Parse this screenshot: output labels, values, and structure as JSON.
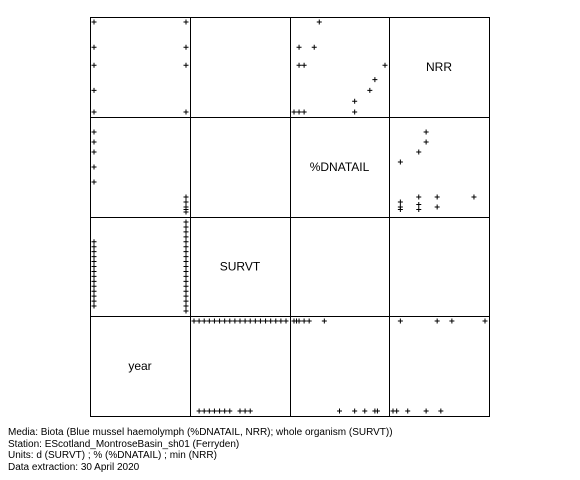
{
  "chart_data": {
    "type": "scatter",
    "layout": "scatterplot-matrix",
    "variables": [
      "NRR",
      "%DNATAIL",
      "SURVT",
      "year"
    ],
    "diagonal_labels": [
      "NRR",
      "%DNATAIL",
      "SURVT",
      "year"
    ],
    "grid": false,
    "panels": [
      {
        "row": 0,
        "col": 0,
        "x_var": "year",
        "y_var": "NRR",
        "points": [
          [
            0.0,
            95
          ],
          [
            0.7,
            95
          ],
          [
            0.0,
            88
          ],
          [
            0.7,
            88
          ],
          [
            0.0,
            83
          ],
          [
            0.7,
            83
          ],
          [
            0.0,
            76
          ],
          [
            0.0,
            70
          ],
          [
            0.7,
            70
          ]
        ]
      },
      {
        "row": 0,
        "col": 2,
        "x_var": "%DNATAIL",
        "y_var": "NRR",
        "points": [
          [
            5,
            95
          ],
          [
            1,
            88
          ],
          [
            4,
            88
          ],
          [
            1,
            83
          ],
          [
            2,
            83
          ],
          [
            18,
            83
          ],
          [
            16,
            79
          ],
          [
            15,
            76
          ],
          [
            12,
            73
          ],
          [
            0,
            70
          ],
          [
            1,
            70
          ],
          [
            2,
            70
          ],
          [
            12,
            70
          ]
        ]
      },
      {
        "row": 1,
        "col": 0,
        "x_var": "year",
        "y_var": "%DNATAIL",
        "points": [
          [
            0.0,
            16
          ],
          [
            0.0,
            14
          ],
          [
            0.0,
            12
          ],
          [
            0.0,
            9
          ],
          [
            0.0,
            6
          ],
          [
            0.7,
            1
          ],
          [
            0.7,
            2
          ],
          [
            0.7,
            3
          ],
          [
            0.7,
            0
          ],
          [
            0.7,
            0.5
          ]
        ]
      },
      {
        "row": 1,
        "col": 3,
        "x_var": "NRR",
        "y_var": "%DNATAIL",
        "points": [
          [
            79,
            16
          ],
          [
            79,
            14
          ],
          [
            77,
            12
          ],
          [
            72,
            10
          ],
          [
            77,
            3
          ],
          [
            72,
            2
          ],
          [
            72,
            1
          ],
          [
            72,
            0.5
          ],
          [
            77,
            1.5
          ],
          [
            77,
            0.5
          ],
          [
            82,
            3
          ],
          [
            82,
            1
          ],
          [
            92,
            3
          ]
        ]
      },
      {
        "row": 2,
        "col": 0,
        "x_var": "year",
        "y_var": "SURVT",
        "points": [
          [
            0.0,
            14
          ],
          [
            0.0,
            13
          ],
          [
            0.0,
            12
          ],
          [
            0.0,
            11
          ],
          [
            0.0,
            10
          ],
          [
            0.0,
            9
          ],
          [
            0.0,
            8
          ],
          [
            0.0,
            7
          ],
          [
            0.0,
            6
          ],
          [
            0.0,
            5
          ],
          [
            0.0,
            4
          ],
          [
            0.0,
            3
          ],
          [
            0.0,
            2
          ],
          [
            0.0,
            1
          ],
          [
            0.7,
            18
          ],
          [
            0.7,
            17
          ],
          [
            0.7,
            16
          ],
          [
            0.7,
            15
          ],
          [
            0.7,
            14
          ],
          [
            0.7,
            13
          ],
          [
            0.7,
            12
          ],
          [
            0.7,
            11
          ],
          [
            0.7,
            10
          ],
          [
            0.7,
            9
          ],
          [
            0.7,
            8
          ],
          [
            0.7,
            7
          ],
          [
            0.7,
            6
          ],
          [
            0.7,
            5
          ],
          [
            0.7,
            4
          ],
          [
            0.7,
            3
          ],
          [
            0.7,
            2
          ],
          [
            0.7,
            1
          ],
          [
            0.7,
            0
          ]
        ]
      },
      {
        "row": 3,
        "col": 1,
        "x_var": "SURVT",
        "y_var": "year",
        "points": [
          [
            0,
            0.7
          ],
          [
            1,
            0.7
          ],
          [
            2,
            0.7
          ],
          [
            3,
            0.7
          ],
          [
            4,
            0.7
          ],
          [
            5,
            0.7
          ],
          [
            6,
            0.7
          ],
          [
            7,
            0.7
          ],
          [
            8,
            0.7
          ],
          [
            9,
            0.7
          ],
          [
            10,
            0.7
          ],
          [
            11,
            0.7
          ],
          [
            12,
            0.7
          ],
          [
            13,
            0.7
          ],
          [
            14,
            0.7
          ],
          [
            15,
            0.7
          ],
          [
            16,
            0.7
          ],
          [
            17,
            0.7
          ],
          [
            18,
            0.7
          ],
          [
            1,
            0.0
          ],
          [
            2,
            0.0
          ],
          [
            3,
            0.0
          ],
          [
            4,
            0.0
          ],
          [
            5,
            0.0
          ],
          [
            6,
            0.0
          ],
          [
            7,
            0.0
          ],
          [
            9,
            0.0
          ],
          [
            10,
            0.0
          ],
          [
            11,
            0.0
          ]
        ]
      },
      {
        "row": 3,
        "col": 2,
        "x_var": "%DNATAIL",
        "y_var": "year",
        "points": [
          [
            0,
            0.7
          ],
          [
            0.5,
            0.7
          ],
          [
            1,
            0.7
          ],
          [
            2,
            0.7
          ],
          [
            3,
            0.7
          ],
          [
            6,
            0.7
          ],
          [
            9,
            0.0
          ],
          [
            12,
            0.0
          ],
          [
            14,
            0.0
          ],
          [
            16,
            0.0
          ],
          [
            16.5,
            0.0
          ]
        ]
      },
      {
        "row": 3,
        "col": 3,
        "x_var": "NRR",
        "y_var": "year",
        "points": [
          [
            72,
            0.7
          ],
          [
            82,
            0.7
          ],
          [
            86,
            0.7
          ],
          [
            95,
            0.7
          ],
          [
            70,
            0.0
          ],
          [
            71,
            0.0
          ],
          [
            74,
            0.0
          ],
          [
            79,
            0.0
          ],
          [
            83,
            0.0
          ]
        ]
      }
    ]
  },
  "caption": {
    "media": "Media: Biota (Blue mussel haemolymph (%DNATAIL, NRR); whole organism (SURVT))",
    "station": "Station: EScotland_MontroseBasin_sh01 (Ferryden)",
    "units": "Units:  d (SURVT) ;  % (%DNATAIL) ;  min (NRR)",
    "extraction": "Data extraction: 30 April 2020"
  }
}
